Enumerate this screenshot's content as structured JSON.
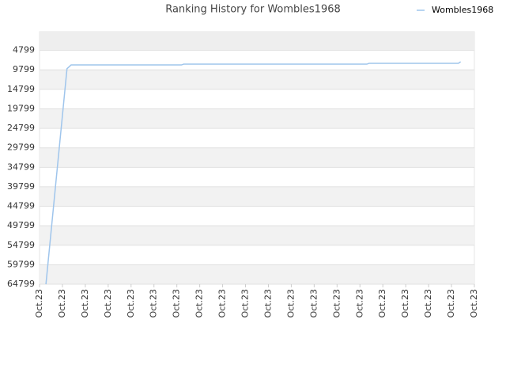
{
  "chart_data": {
    "type": "line",
    "title": "Ranking History for Wombles1968",
    "x": [
      0.28,
      1.2,
      1.38,
      6.2,
      6.3,
      14.3,
      14.4,
      18.3,
      18.4
    ],
    "series": [
      {
        "name": "Wombles1968",
        "color": "#9fc5ec",
        "values": [
          64799,
          9500,
          8543,
          8543,
          8340,
          8340,
          8136,
          8136,
          7730
        ]
      }
    ],
    "xlim": [
      0,
      19
    ],
    "xticks": [
      {
        "value": 0,
        "label": "Oct.23"
      },
      {
        "value": 1,
        "label": "Oct.23"
      },
      {
        "value": 2,
        "label": "Oct.23"
      },
      {
        "value": 3,
        "label": "Oct.23"
      },
      {
        "value": 4,
        "label": "Oct.23"
      },
      {
        "value": 5,
        "label": "Oct.23"
      },
      {
        "value": 6,
        "label": "Oct.23"
      },
      {
        "value": 7,
        "label": "Oct.23"
      },
      {
        "value": 8,
        "label": "Oct.23"
      },
      {
        "value": 9,
        "label": "Oct.23"
      },
      {
        "value": 10,
        "label": "Oct.23"
      },
      {
        "value": 11,
        "label": "Oct.23"
      },
      {
        "value": 12,
        "label": "Oct.23"
      },
      {
        "value": 13,
        "label": "Oct.23"
      },
      {
        "value": 14,
        "label": "Oct.23"
      },
      {
        "value": 15,
        "label": "Oct.23"
      },
      {
        "value": 16,
        "label": "Oct.23"
      },
      {
        "value": 17,
        "label": "Oct.23"
      },
      {
        "value": 18,
        "label": "Oct.23"
      },
      {
        "value": 19,
        "label": "Oct.23"
      }
    ],
    "ylim": [
      64799,
      0
    ],
    "yticks": [
      4799,
      9799,
      14799,
      19799,
      24799,
      29799,
      34799,
      39799,
      44799,
      49799,
      54799,
      59799,
      64799
    ],
    "grid": true,
    "legend": "top-right"
  }
}
